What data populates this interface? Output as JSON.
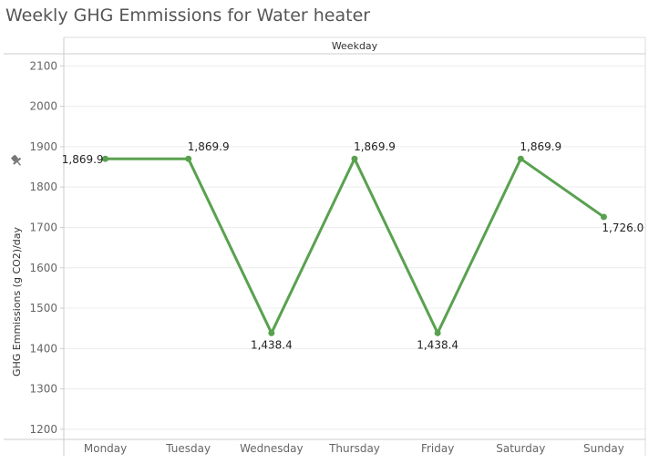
{
  "title": "Weekly GHG Emmissions for Water heater",
  "chart_data": {
    "type": "line",
    "title": "Weekly GHG Emmissions for Water heater",
    "column_header": "Weekday",
    "xlabel": "",
    "ylabel": "GHG Emmissions (g CO2)/day",
    "categories": [
      "Monday",
      "Tuesday",
      "Wednesday",
      "Thursday",
      "Friday",
      "Saturday",
      "Sunday"
    ],
    "series": [
      {
        "values": [
          1869.9,
          1869.9,
          1438.4,
          1869.9,
          1438.4,
          1869.9,
          1726.0
        ],
        "labels": [
          "1,869.9",
          "1,869.9",
          "1,438.4",
          "1,869.9",
          "1,438.4",
          "1,869.9",
          "1,726.0"
        ]
      }
    ],
    "yticks": [
      1200,
      1300,
      1400,
      1500,
      1600,
      1700,
      1800,
      1900,
      2000,
      2100
    ],
    "ylim": [
      1175,
      2130
    ],
    "grid": true,
    "colors": {
      "line": "#59a14f",
      "grid": "#ececec",
      "axis": "#cccccc"
    },
    "icons": {
      "ylabel_marker": "pin-icon"
    }
  }
}
